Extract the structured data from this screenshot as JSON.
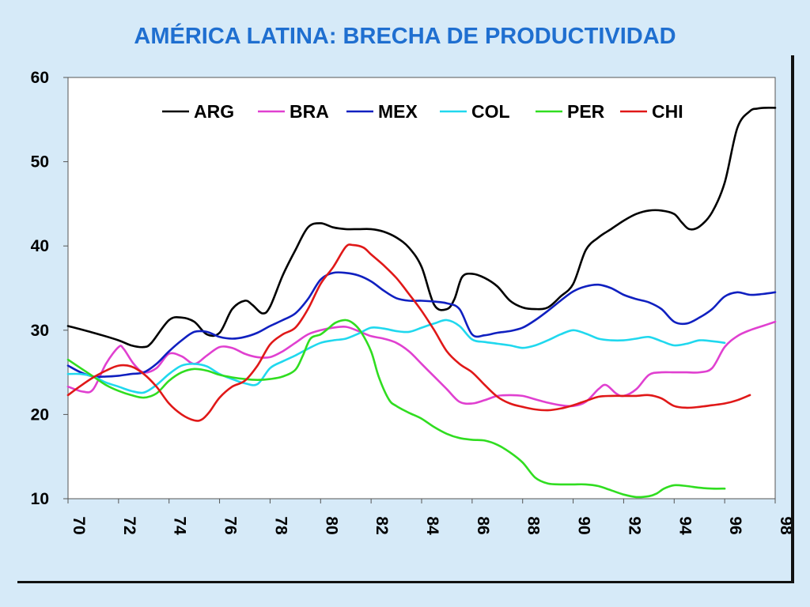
{
  "chart_data": {
    "type": "line",
    "title": "AMÉRICA LATINA: BRECHA DE PRODUCTIVIDAD",
    "xlabel": "",
    "ylabel": "",
    "xlim": [
      70,
      98
    ],
    "ylim": [
      10,
      60
    ],
    "yticks": [
      "10",
      "20",
      "30",
      "40",
      "50",
      "60"
    ],
    "xticks": [
      "70",
      "72",
      "74",
      "76",
      "78",
      "80",
      "82",
      "84",
      "86",
      "88",
      "90",
      "92",
      "94",
      "96",
      "98"
    ],
    "legend_position": "top",
    "grid": false,
    "series": [
      {
        "name": "ARG",
        "color": "#000000",
        "x": [
          70,
          71,
          72,
          72.5,
          73,
          73.3,
          74,
          74.5,
          75,
          75.5,
          76,
          76.5,
          77,
          77.3,
          77.7,
          78,
          78.5,
          79,
          79.5,
          80,
          80.5,
          81,
          81.5,
          82,
          82.5,
          83,
          83.5,
          84,
          84.5,
          85,
          85.3,
          85.6,
          86,
          86.5,
          87,
          87.5,
          88,
          88.5,
          89,
          89.5,
          90,
          90.5,
          91,
          91.5,
          92,
          92.5,
          93,
          93.5,
          94,
          94.3,
          94.6,
          95,
          95.5,
          96,
          96.5,
          97,
          97.3,
          97.6,
          98
        ],
        "y": [
          30.5,
          29.7,
          28.8,
          28.2,
          28.0,
          28.5,
          31.2,
          31.5,
          31.0,
          29.5,
          29.7,
          32.5,
          33.5,
          33.0,
          32.0,
          32.8,
          36.5,
          39.5,
          42.2,
          42.7,
          42.2,
          42.0,
          42.0,
          42.0,
          41.7,
          41.0,
          39.8,
          37.5,
          33.0,
          32.5,
          33.7,
          36.3,
          36.7,
          36.2,
          35.2,
          33.5,
          32.7,
          32.5,
          32.7,
          34.0,
          35.5,
          39.5,
          41.0,
          42.0,
          43.0,
          43.8,
          44.2,
          44.2,
          43.8,
          42.8,
          42.0,
          42.3,
          44.0,
          47.5,
          54.0,
          56.0,
          56.3,
          56.4,
          56.4
        ]
      },
      {
        "name": "BRA",
        "color": "#e040d0",
        "x": [
          70,
          70.6,
          71,
          71.5,
          72,
          72.2,
          72.6,
          73,
          73.5,
          74,
          74.5,
          75,
          75.5,
          76,
          76.5,
          77,
          77.5,
          78,
          78.5,
          79,
          79.5,
          80,
          80.5,
          81,
          81.5,
          82,
          82.5,
          83,
          83.5,
          84,
          84.5,
          85,
          85.5,
          86,
          86.5,
          87,
          87.5,
          88,
          88.5,
          89,
          89.5,
          90,
          90.5,
          91,
          91.3,
          91.7,
          92,
          92.5,
          93,
          93.5,
          94,
          94.5,
          95,
          95.5,
          96,
          96.5,
          97,
          97.5,
          98
        ],
        "y": [
          23.3,
          22.7,
          23.0,
          26.0,
          28.0,
          27.8,
          26.0,
          25.0,
          25.5,
          27.2,
          26.9,
          26.0,
          27.0,
          28.0,
          27.9,
          27.2,
          26.8,
          26.8,
          27.5,
          28.5,
          29.5,
          30.0,
          30.3,
          30.4,
          29.9,
          29.3,
          29.0,
          28.5,
          27.5,
          26.0,
          24.5,
          23.0,
          21.5,
          21.3,
          21.7,
          22.2,
          22.3,
          22.2,
          21.8,
          21.4,
          21.1,
          21.0,
          21.5,
          23.0,
          23.5,
          22.5,
          22.2,
          23.0,
          24.7,
          25.0,
          25.0,
          25.0,
          25.0,
          25.5,
          28.0,
          29.3,
          30.0,
          30.5,
          31.0
        ]
      },
      {
        "name": "MEX",
        "color": "#1020c0",
        "x": [
          70,
          70.5,
          71,
          71.5,
          72,
          72.5,
          73,
          73.5,
          74,
          74.5,
          75,
          75.5,
          76,
          76.5,
          77,
          77.5,
          78,
          78.5,
          79,
          79.5,
          80,
          80.5,
          81,
          81.5,
          82,
          82.5,
          83,
          83.5,
          84,
          84.5,
          85,
          85.5,
          86,
          86.5,
          87,
          87.5,
          88,
          88.5,
          89,
          89.5,
          90,
          90.5,
          91,
          91.5,
          92,
          92.5,
          93,
          93.5,
          94,
          94.5,
          95,
          95.5,
          96,
          96.5,
          97,
          97.5,
          98
        ],
        "y": [
          25.8,
          25.0,
          24.5,
          24.5,
          24.6,
          24.8,
          25.0,
          26.0,
          27.5,
          28.8,
          29.8,
          29.8,
          29.2,
          29.0,
          29.2,
          29.7,
          30.5,
          31.2,
          32.0,
          33.7,
          36.0,
          36.8,
          36.8,
          36.5,
          35.8,
          34.7,
          33.8,
          33.5,
          33.5,
          33.4,
          33.2,
          32.5,
          29.5,
          29.4,
          29.7,
          29.9,
          30.3,
          31.2,
          32.3,
          33.5,
          34.6,
          35.2,
          35.4,
          35.0,
          34.2,
          33.7,
          33.3,
          32.5,
          31.0,
          30.8,
          31.5,
          32.5,
          34.0,
          34.5,
          34.2,
          34.3,
          34.5
        ]
      },
      {
        "name": "COL",
        "color": "#20d8ee",
        "x": [
          70,
          70.5,
          71,
          71.5,
          72,
          72.5,
          73,
          73.5,
          74,
          74.5,
          75,
          75.5,
          76,
          76.5,
          77,
          77.5,
          78,
          78.5,
          79,
          79.5,
          80,
          80.5,
          81,
          81.5,
          82,
          82.5,
          83,
          83.5,
          84,
          84.5,
          85,
          85.5,
          86,
          86.5,
          87,
          87.5,
          88,
          88.5,
          89,
          89.5,
          90,
          90.5,
          91,
          91.5,
          92,
          92.5,
          93,
          93.5,
          94,
          94.5,
          95,
          95.5,
          96
        ],
        "y": [
          24.8,
          24.8,
          24.5,
          23.8,
          23.3,
          22.8,
          22.6,
          23.5,
          24.8,
          25.8,
          26.0,
          25.7,
          24.8,
          24.2,
          23.7,
          23.6,
          25.5,
          26.3,
          27.0,
          27.8,
          28.5,
          28.8,
          29.0,
          29.6,
          30.3,
          30.2,
          29.9,
          29.8,
          30.3,
          30.8,
          31.2,
          30.5,
          28.9,
          28.6,
          28.4,
          28.2,
          27.9,
          28.2,
          28.8,
          29.5,
          30.0,
          29.6,
          29.0,
          28.8,
          28.8,
          29.0,
          29.2,
          28.7,
          28.2,
          28.4,
          28.8,
          28.7,
          28.5
        ]
      },
      {
        "name": "PER",
        "color": "#30dd20",
        "x": [
          70,
          70.5,
          71,
          71.5,
          72,
          72.5,
          73,
          73.5,
          74,
          74.5,
          75,
          75.5,
          76,
          76.5,
          77,
          77.5,
          78,
          78.5,
          79,
          79.3,
          79.6,
          80,
          80.3,
          80.6,
          81,
          81.3,
          81.6,
          82,
          82.3,
          82.7,
          83,
          83.5,
          84,
          84.5,
          85,
          85.5,
          86,
          86.5,
          87,
          87.5,
          88,
          88.5,
          89,
          89.5,
          90,
          90.5,
          91,
          91.5,
          92,
          92.5,
          93,
          93.3,
          93.6,
          94,
          94.5,
          95,
          95.5,
          96
        ],
        "y": [
          26.5,
          25.5,
          24.5,
          23.5,
          22.8,
          22.3,
          22.0,
          22.5,
          24.0,
          25.0,
          25.4,
          25.2,
          24.7,
          24.4,
          24.2,
          24.1,
          24.2,
          24.5,
          25.3,
          27.0,
          29.0,
          29.5,
          30.2,
          30.9,
          31.2,
          30.8,
          29.8,
          27.5,
          24.5,
          21.8,
          21.0,
          20.2,
          19.5,
          18.5,
          17.7,
          17.2,
          17.0,
          16.9,
          16.4,
          15.5,
          14.3,
          12.5,
          11.8,
          11.7,
          11.7,
          11.7,
          11.5,
          11.0,
          10.5,
          10.2,
          10.3,
          10.6,
          11.2,
          11.6,
          11.5,
          11.3,
          11.2,
          11.2
        ]
      },
      {
        "name": "CHI",
        "color": "#e01818",
        "x": [
          70,
          70.5,
          71,
          71.5,
          72,
          72.5,
          73,
          73.5,
          74,
          74.5,
          75,
          75.3,
          75.6,
          76,
          76.5,
          77,
          77.5,
          78,
          78.5,
          79,
          79.5,
          80,
          80.5,
          81,
          81.3,
          81.7,
          82,
          82.5,
          83,
          83.5,
          84,
          84.5,
          85,
          85.5,
          86,
          86.5,
          87,
          87.5,
          88,
          88.5,
          89,
          89.5,
          90,
          90.5,
          91,
          91.5,
          92,
          92.5,
          93,
          93.5,
          94,
          94.5,
          95,
          95.5,
          96,
          96.5,
          97
        ],
        "y": [
          22.3,
          23.4,
          24.4,
          25.2,
          25.8,
          25.7,
          24.8,
          23.3,
          21.3,
          20.0,
          19.3,
          19.4,
          20.3,
          22.0,
          23.3,
          24.0,
          25.8,
          28.3,
          29.5,
          30.3,
          32.5,
          35.5,
          37.5,
          39.9,
          40.1,
          39.8,
          39.0,
          37.7,
          36.2,
          34.3,
          32.3,
          30.0,
          27.5,
          26.0,
          25.0,
          23.5,
          22.1,
          21.3,
          20.9,
          20.6,
          20.5,
          20.7,
          21.1,
          21.6,
          22.1,
          22.2,
          22.2,
          22.2,
          22.3,
          21.9,
          21.0,
          20.8,
          20.9,
          21.1,
          21.3,
          21.7,
          22.3
        ]
      }
    ]
  }
}
